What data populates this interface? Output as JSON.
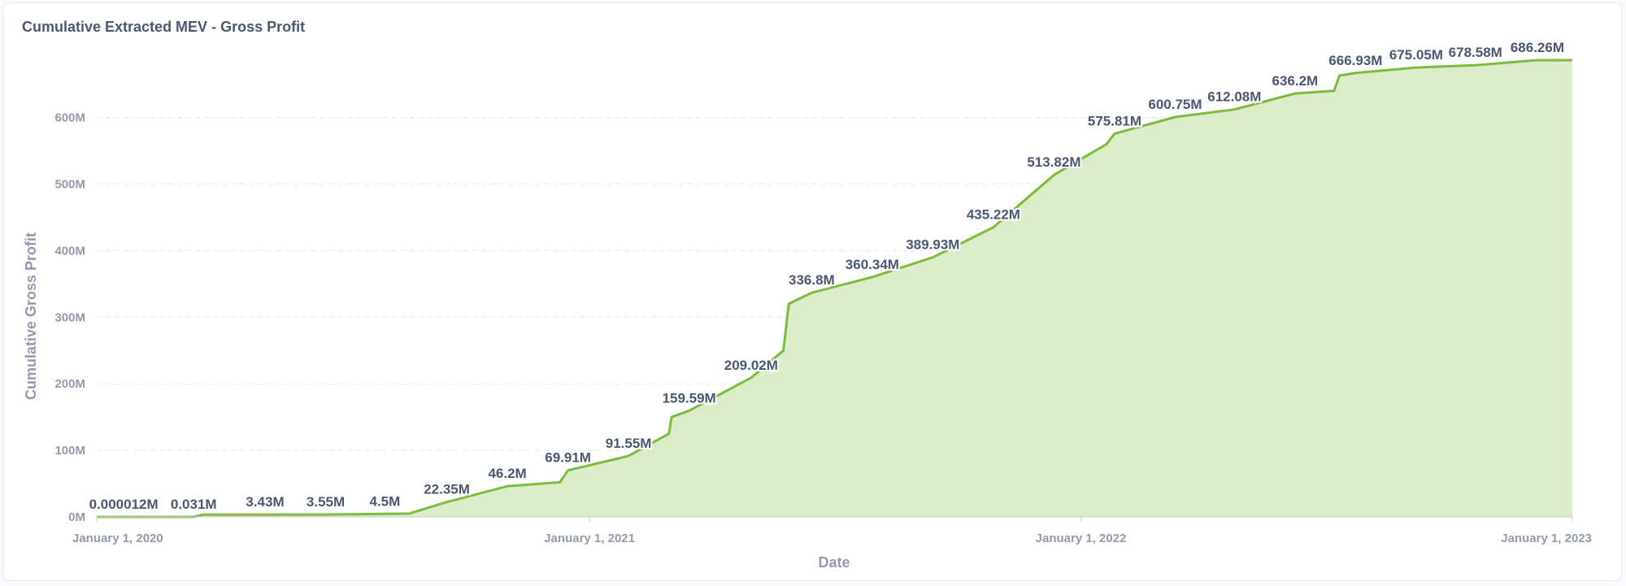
{
  "chart_data": {
    "type": "area",
    "title": "Cumulative Extracted MEV - Gross Profit",
    "xlabel": "Date",
    "ylabel": "Cumulative Gross Profit",
    "xlim": [
      "2020-01-01",
      "2023-01-01"
    ],
    "ylim": [
      0,
      700
    ],
    "y_unit": "M",
    "yticks": [
      0,
      100,
      200,
      300,
      400,
      500,
      600
    ],
    "ytick_labels": [
      "0M",
      "100M",
      "200M",
      "300M",
      "400M",
      "500M",
      "600M"
    ],
    "xticks": [
      "2020-01-01",
      "2021-01-01",
      "2022-01-01",
      "2023-01-01"
    ],
    "xtick_labels": [
      "January 1, 2020",
      "January 1, 2021",
      "January 1, 2022",
      "January 1, 2023"
    ],
    "grid": true,
    "color": "#7cbb3e",
    "fill_color": "#dcebc8",
    "points": [
      {
        "x": "2020-01-01",
        "y": 0
      },
      {
        "x": "2020-01-21",
        "y": 1.2e-05,
        "label": "0.000012M"
      },
      {
        "x": "2020-03-13",
        "y": 0.031,
        "label": "0.031M"
      },
      {
        "x": "2020-03-20",
        "y": 3.3
      },
      {
        "x": "2020-05-05",
        "y": 3.43,
        "label": "3.43M"
      },
      {
        "x": "2020-06-19",
        "y": 3.55,
        "label": "3.55M"
      },
      {
        "x": "2020-08-02",
        "y": 4.5,
        "label": "4.5M"
      },
      {
        "x": "2020-08-20",
        "y": 5
      },
      {
        "x": "2020-09-17",
        "y": 22.35,
        "label": "22.35M"
      },
      {
        "x": "2020-11-01",
        "y": 46.2,
        "label": "46.2M"
      },
      {
        "x": "2020-12-10",
        "y": 52
      },
      {
        "x": "2020-12-16",
        "y": 69.91,
        "label": "69.91M"
      },
      {
        "x": "2021-01-30",
        "y": 91.55,
        "label": "91.55M"
      },
      {
        "x": "2021-03-01",
        "y": 125
      },
      {
        "x": "2021-03-03",
        "y": 150
      },
      {
        "x": "2021-03-16",
        "y": 159.59,
        "label": "159.59M"
      },
      {
        "x": "2021-05-01",
        "y": 209.02,
        "label": "209.02M"
      },
      {
        "x": "2021-05-25",
        "y": 250
      },
      {
        "x": "2021-05-29",
        "y": 320
      },
      {
        "x": "2021-06-15",
        "y": 336.8,
        "label": "336.8M"
      },
      {
        "x": "2021-07-30",
        "y": 360.34,
        "label": "360.34M"
      },
      {
        "x": "2021-09-13",
        "y": 389.93,
        "label": "389.93M"
      },
      {
        "x": "2021-10-28",
        "y": 435.22,
        "label": "435.22M"
      },
      {
        "x": "2021-12-12",
        "y": 513.82,
        "label": "513.82M"
      },
      {
        "x": "2022-01-20",
        "y": 560
      },
      {
        "x": "2022-01-26",
        "y": 575.81,
        "label": "575.81M"
      },
      {
        "x": "2022-03-12",
        "y": 600.75,
        "label": "600.75M"
      },
      {
        "x": "2022-04-25",
        "y": 612.08,
        "label": "612.08M"
      },
      {
        "x": "2022-06-09",
        "y": 636.2,
        "label": "636.2M"
      },
      {
        "x": "2022-07-08",
        "y": 640
      },
      {
        "x": "2022-07-12",
        "y": 663
      },
      {
        "x": "2022-07-24",
        "y": 666.93,
        "label": "666.93M"
      },
      {
        "x": "2022-09-07",
        "y": 675.05,
        "label": "675.05M"
      },
      {
        "x": "2022-10-21",
        "y": 678.58,
        "label": "678.58M"
      },
      {
        "x": "2022-12-06",
        "y": 686.26,
        "label": "686.26M"
      },
      {
        "x": "2023-01-01",
        "y": 686.26
      }
    ]
  }
}
